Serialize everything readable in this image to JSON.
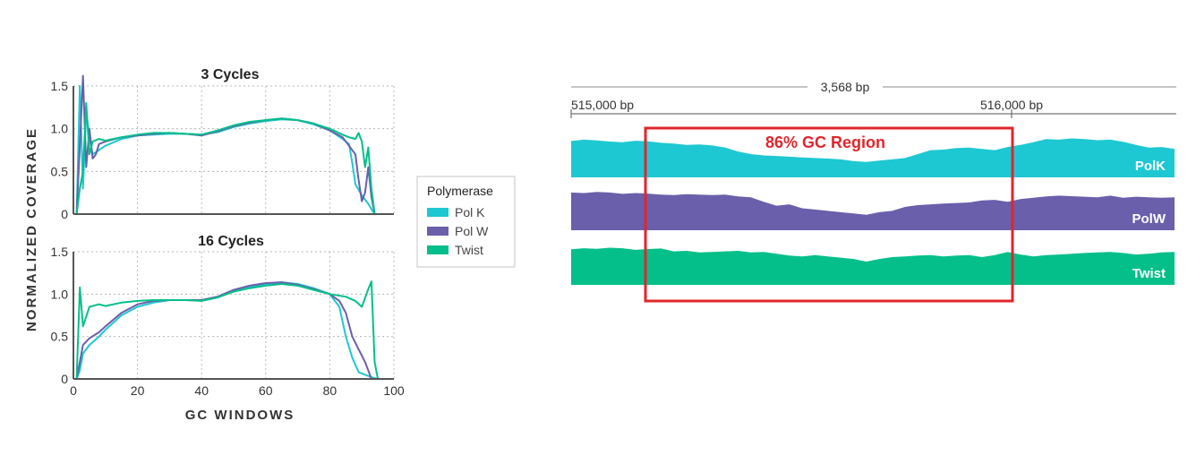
{
  "colors": {
    "polk": "#1ec8d2",
    "polw": "#6a5fab",
    "twist": "#05bf8a",
    "region": "#e0262b"
  },
  "figure": {
    "ylabel": "NORMALIZED COVERAGE",
    "xlabel": "GC WINDOWS"
  },
  "legend": {
    "title": "Polymerase",
    "items": [
      {
        "label": "Pol K",
        "color": "#1ec8d2"
      },
      {
        "label": "Pol W",
        "color": "#6a5fab"
      },
      {
        "label": "Twist",
        "color": "#05bf8a"
      }
    ]
  },
  "chart_data": [
    {
      "type": "line",
      "title": "3 Cycles",
      "xlim": [
        0,
        100
      ],
      "ylim": [
        0,
        1.5
      ],
      "xticks": [
        "0",
        "20",
        "40",
        "60",
        "80",
        "100"
      ],
      "yticks": [
        "0",
        "0.5",
        "1.0",
        "1.5"
      ],
      "grid": true,
      "series": [
        {
          "name": "Pol K",
          "points": [
            [
              1,
              0
            ],
            [
              2,
              1.5
            ],
            [
              3,
              0.3
            ],
            [
              4,
              1.2
            ],
            [
              5,
              0.9
            ],
            [
              6,
              0.7
            ],
            [
              8,
              0.75
            ],
            [
              10,
              0.8
            ],
            [
              15,
              0.88
            ],
            [
              20,
              0.92
            ],
            [
              25,
              0.93
            ],
            [
              30,
              0.94
            ],
            [
              35,
              0.94
            ],
            [
              40,
              0.93
            ],
            [
              45,
              0.96
            ],
            [
              50,
              1.02
            ],
            [
              55,
              1.06
            ],
            [
              60,
              1.09
            ],
            [
              65,
              1.11
            ],
            [
              70,
              1.1
            ],
            [
              75,
              1.05
            ],
            [
              80,
              0.98
            ],
            [
              84,
              0.88
            ],
            [
              86,
              0.82
            ],
            [
              87,
              0.6
            ],
            [
              88,
              0.35
            ],
            [
              90,
              0.22
            ],
            [
              92,
              0.12
            ],
            [
              93,
              0.06
            ],
            [
              94,
              0.0
            ]
          ]
        },
        {
          "name": "Pol W",
          "points": [
            [
              1,
              0
            ],
            [
              2,
              0.8
            ],
            [
              3,
              1.62
            ],
            [
              4,
              0.55
            ],
            [
              5,
              1.0
            ],
            [
              6,
              0.65
            ],
            [
              7,
              0.7
            ],
            [
              8,
              0.82
            ],
            [
              10,
              0.85
            ],
            [
              15,
              0.9
            ],
            [
              20,
              0.92
            ],
            [
              25,
              0.94
            ],
            [
              30,
              0.95
            ],
            [
              35,
              0.94
            ],
            [
              40,
              0.92
            ],
            [
              45,
              0.97
            ],
            [
              50,
              1.03
            ],
            [
              55,
              1.07
            ],
            [
              60,
              1.1
            ],
            [
              65,
              1.12
            ],
            [
              70,
              1.1
            ],
            [
              75,
              1.06
            ],
            [
              80,
              0.98
            ],
            [
              84,
              0.9
            ],
            [
              86,
              0.8
            ],
            [
              88,
              0.7
            ],
            [
              89,
              0.4
            ],
            [
              90,
              0.15
            ],
            [
              91,
              0.25
            ],
            [
              92,
              0.55
            ],
            [
              93,
              0.2
            ],
            [
              94,
              0.0
            ]
          ]
        },
        {
          "name": "Twist",
          "points": [
            [
              1,
              0
            ],
            [
              2,
              0.3
            ],
            [
              3,
              0.5
            ],
            [
              4,
              1.3
            ],
            [
              5,
              0.7
            ],
            [
              6,
              0.85
            ],
            [
              8,
              0.88
            ],
            [
              10,
              0.86
            ],
            [
              15,
              0.9
            ],
            [
              20,
              0.93
            ],
            [
              25,
              0.95
            ],
            [
              30,
              0.95
            ],
            [
              35,
              0.94
            ],
            [
              40,
              0.93
            ],
            [
              45,
              0.98
            ],
            [
              50,
              1.04
            ],
            [
              55,
              1.08
            ],
            [
              60,
              1.1
            ],
            [
              65,
              1.12
            ],
            [
              70,
              1.1
            ],
            [
              75,
              1.06
            ],
            [
              80,
              1.0
            ],
            [
              84,
              0.93
            ],
            [
              86,
              0.9
            ],
            [
              88,
              0.88
            ],
            [
              89,
              0.95
            ],
            [
              90,
              0.85
            ],
            [
              91,
              0.55
            ],
            [
              92,
              0.78
            ],
            [
              93,
              0.3
            ],
            [
              94,
              0.0
            ]
          ]
        }
      ]
    },
    {
      "type": "line",
      "title": "16 Cycles",
      "xlim": [
        0,
        100
      ],
      "ylim": [
        0,
        1.5
      ],
      "xticks": [
        "0",
        "20",
        "40",
        "60",
        "80",
        "100"
      ],
      "yticks": [
        "0",
        "0.5",
        "1.0",
        "1.5"
      ],
      "grid": true,
      "series": [
        {
          "name": "Pol K",
          "points": [
            [
              1,
              0
            ],
            [
              2,
              0.1
            ],
            [
              3,
              0.3
            ],
            [
              5,
              0.4
            ],
            [
              8,
              0.5
            ],
            [
              10,
              0.58
            ],
            [
              15,
              0.75
            ],
            [
              20,
              0.85
            ],
            [
              25,
              0.9
            ],
            [
              30,
              0.93
            ],
            [
              35,
              0.93
            ],
            [
              40,
              0.93
            ],
            [
              45,
              0.97
            ],
            [
              50,
              1.03
            ],
            [
              55,
              1.08
            ],
            [
              60,
              1.12
            ],
            [
              65,
              1.14
            ],
            [
              70,
              1.12
            ],
            [
              75,
              1.07
            ],
            [
              80,
              1.0
            ],
            [
              83,
              0.85
            ],
            [
              85,
              0.5
            ],
            [
              87,
              0.25
            ],
            [
              89,
              0.08
            ],
            [
              91,
              0.05
            ],
            [
              93,
              0.02
            ],
            [
              95,
              0.0
            ]
          ]
        },
        {
          "name": "Pol W",
          "points": [
            [
              1,
              0
            ],
            [
              2,
              0.2
            ],
            [
              3,
              0.4
            ],
            [
              5,
              0.48
            ],
            [
              8,
              0.55
            ],
            [
              10,
              0.62
            ],
            [
              15,
              0.78
            ],
            [
              20,
              0.88
            ],
            [
              25,
              0.92
            ],
            [
              30,
              0.93
            ],
            [
              35,
              0.93
            ],
            [
              40,
              0.93
            ],
            [
              45,
              0.97
            ],
            [
              50,
              1.05
            ],
            [
              55,
              1.1
            ],
            [
              60,
              1.13
            ],
            [
              65,
              1.14
            ],
            [
              70,
              1.11
            ],
            [
              75,
              1.06
            ],
            [
              80,
              1.0
            ],
            [
              83,
              0.92
            ],
            [
              85,
              0.78
            ],
            [
              87,
              0.5
            ],
            [
              89,
              0.35
            ],
            [
              91,
              0.2
            ],
            [
              92,
              0.1
            ],
            [
              93,
              0.0
            ]
          ]
        },
        {
          "name": "Twist",
          "points": [
            [
              1,
              0
            ],
            [
              2,
              1.08
            ],
            [
              3,
              0.62
            ],
            [
              5,
              0.85
            ],
            [
              8,
              0.88
            ],
            [
              10,
              0.86
            ],
            [
              15,
              0.9
            ],
            [
              20,
              0.92
            ],
            [
              25,
              0.93
            ],
            [
              30,
              0.93
            ],
            [
              35,
              0.93
            ],
            [
              40,
              0.92
            ],
            [
              45,
              0.96
            ],
            [
              50,
              1.03
            ],
            [
              55,
              1.07
            ],
            [
              60,
              1.1
            ],
            [
              65,
              1.12
            ],
            [
              70,
              1.1
            ],
            [
              75,
              1.05
            ],
            [
              80,
              1.0
            ],
            [
              85,
              0.97
            ],
            [
              88,
              0.92
            ],
            [
              90,
              0.85
            ],
            [
              92,
              1.06
            ],
            [
              93,
              1.15
            ],
            [
              94,
              0.2
            ],
            [
              95,
              0.0
            ]
          ]
        }
      ]
    }
  ],
  "genome": {
    "span_label": "3,568 bp",
    "left_bp_label": "515,000 bp",
    "right_bp_label": "516,000 bp",
    "region_label": "86% GC Region",
    "tracks": [
      {
        "label": "PolK",
        "color": "#1ec8d2",
        "profile": [
          0.85,
          0.9,
          0.87,
          0.83,
          0.8,
          0.86,
          0.84,
          0.78,
          0.75,
          0.7,
          0.72,
          0.68,
          0.6,
          0.45,
          0.35,
          0.3,
          0.28,
          0.25,
          0.22,
          0.2,
          0.18,
          0.15,
          0.08,
          0.05,
          0.1,
          0.15,
          0.2,
          0.35,
          0.5,
          0.52,
          0.58,
          0.6,
          0.55,
          0.5,
          0.62,
          0.7,
          0.8,
          0.92,
          0.9,
          0.95,
          0.92,
          0.88,
          0.9,
          0.82,
          0.7,
          0.6,
          0.62,
          0.55
        ]
      },
      {
        "label": "PolW",
        "color": "#6a5fab",
        "profile": [
          0.9,
          0.88,
          0.92,
          0.9,
          0.85,
          0.88,
          0.86,
          0.82,
          0.8,
          0.84,
          0.82,
          0.8,
          0.82,
          0.75,
          0.72,
          0.55,
          0.4,
          0.45,
          0.3,
          0.25,
          0.2,
          0.15,
          0.1,
          0.05,
          0.15,
          0.2,
          0.35,
          0.42,
          0.45,
          0.48,
          0.5,
          0.52,
          0.6,
          0.62,
          0.55,
          0.65,
          0.7,
          0.75,
          0.78,
          0.76,
          0.74,
          0.72,
          0.78,
          0.7,
          0.74,
          0.72,
          0.7,
          0.72
        ]
      },
      {
        "label": "Twist",
        "color": "#05bf8a",
        "profile": [
          0.82,
          0.86,
          0.84,
          0.88,
          0.86,
          0.8,
          0.83,
          0.85,
          0.74,
          0.76,
          0.7,
          0.72,
          0.74,
          0.76,
          0.7,
          0.72,
          0.65,
          0.58,
          0.55,
          0.6,
          0.55,
          0.5,
          0.45,
          0.35,
          0.45,
          0.52,
          0.55,
          0.58,
          0.6,
          0.55,
          0.58,
          0.6,
          0.52,
          0.6,
          0.72,
          0.62,
          0.55,
          0.6,
          0.62,
          0.65,
          0.68,
          0.7,
          0.72,
          0.68,
          0.62,
          0.65,
          0.7,
          0.72
        ]
      }
    ]
  }
}
